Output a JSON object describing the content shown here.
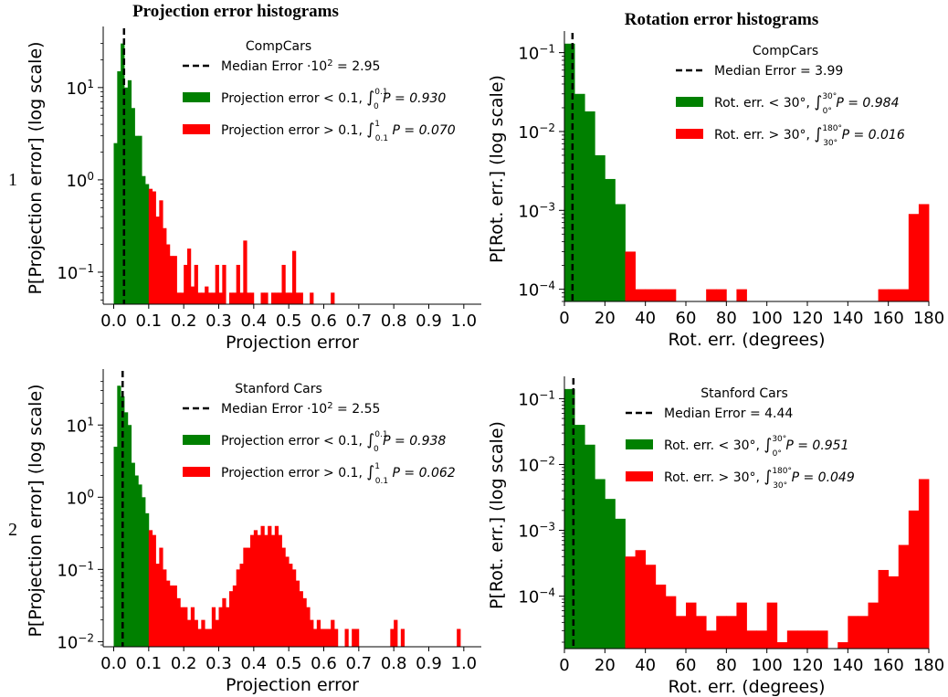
{
  "figure": {
    "column_titles": [
      "Projection error histograms",
      "Rotation error histograms"
    ],
    "row_labels": [
      "1",
      "2"
    ]
  },
  "colors": {
    "below": "#008000",
    "above": "#ff0000",
    "median": "#000000"
  },
  "chart_data": [
    {
      "type": "bar",
      "panel": "1-left",
      "title": "CompCars",
      "xlabel": "Projection error",
      "ylabel": "P[Projection error] (log scale)",
      "yscale": "log",
      "xlim": [
        -0.03,
        1.05
      ],
      "ylim": [
        0.045,
        40
      ],
      "xticks": [
        0.0,
        0.1,
        0.2,
        0.3,
        0.4,
        0.5,
        0.6,
        0.7,
        0.8,
        0.9,
        1.0
      ],
      "xtick_labels": [
        "0.0",
        "0.1",
        "0.2",
        "0.3",
        "0.4",
        "0.5",
        "0.6",
        "0.7",
        "0.8",
        "0.9",
        "1.0"
      ],
      "yticks": [
        0.1,
        1,
        10
      ],
      "ytick_labels": [
        "10⁻¹",
        "10⁰",
        "10¹"
      ],
      "bin_width": 0.01,
      "median": 0.0295,
      "split": 0.1,
      "bins": [
        [
          0.0,
          2.5
        ],
        [
          0.01,
          15
        ],
        [
          0.02,
          30
        ],
        [
          0.03,
          10
        ],
        [
          0.04,
          12
        ],
        [
          0.05,
          6
        ],
        [
          0.06,
          3
        ],
        [
          0.07,
          3
        ],
        [
          0.08,
          1.1
        ],
        [
          0.09,
          0.9
        ],
        [
          0.1,
          0.8
        ],
        [
          0.11,
          0.75
        ],
        [
          0.12,
          0.4
        ],
        [
          0.13,
          0.6
        ],
        [
          0.14,
          0.3
        ],
        [
          0.15,
          0.2
        ],
        [
          0.16,
          0.15
        ],
        [
          0.17,
          0.15
        ],
        [
          0.18,
          0.06
        ],
        [
          0.19,
          0.06
        ],
        [
          0.2,
          0.12
        ],
        [
          0.21,
          0.18
        ],
        [
          0.22,
          0.07
        ],
        [
          0.23,
          0.12
        ],
        [
          0.24,
          0.06
        ],
        [
          0.25,
          0.06
        ],
        [
          0.26,
          0.07
        ],
        [
          0.27,
          0.06
        ],
        [
          0.28,
          0.06
        ],
        [
          0.29,
          0.12
        ],
        [
          0.3,
          0.06
        ],
        [
          0.31,
          0.12
        ],
        [
          0.33,
          0.06
        ],
        [
          0.34,
          0.06
        ],
        [
          0.35,
          0.12
        ],
        [
          0.36,
          0.06
        ],
        [
          0.37,
          0.22
        ],
        [
          0.38,
          0.06
        ],
        [
          0.39,
          0.06
        ],
        [
          0.42,
          0.06
        ],
        [
          0.43,
          0.06
        ],
        [
          0.45,
          0.06
        ],
        [
          0.46,
          0.06
        ],
        [
          0.47,
          0.06
        ],
        [
          0.48,
          0.12
        ],
        [
          0.49,
          0.06
        ],
        [
          0.5,
          0.06
        ],
        [
          0.51,
          0.17
        ],
        [
          0.52,
          0.06
        ],
        [
          0.53,
          0.06
        ],
        [
          0.56,
          0.06
        ],
        [
          0.62,
          0.06
        ]
      ],
      "legend": [
        {
          "kind": "line",
          "text": "Median Error ·10² = 2.95"
        },
        {
          "kind": "bar",
          "color": "below",
          "text": "Projection error < 0.1, ∫₀^0.1 P = 0.930"
        },
        {
          "kind": "bar",
          "color": "above",
          "text": "Projection error > 0.1, ∫_0.1^1 P = 0.070"
        }
      ]
    },
    {
      "type": "bar",
      "panel": "1-right",
      "title": "CompCars",
      "xlabel": "Rot. err. (degrees)",
      "ylabel": "P[Rot. err.] (log scale)",
      "yscale": "log",
      "xlim": [
        0,
        180
      ],
      "ylim": [
        7e-05,
        0.16
      ],
      "xticks": [
        0,
        20,
        40,
        60,
        80,
        100,
        120,
        140,
        160,
        180
      ],
      "xtick_labels": [
        "0",
        "20",
        "40",
        "60",
        "80",
        "100",
        "120",
        "140",
        "160",
        "180"
      ],
      "yticks": [
        0.0001,
        0.001,
        0.01,
        0.1
      ],
      "ytick_labels": [
        "10⁻⁴",
        "10⁻³",
        "10⁻²",
        "10⁻¹"
      ],
      "bin_width": 5,
      "median": 3.99,
      "split": 30,
      "bins": [
        [
          0,
          0.13
        ],
        [
          5,
          0.03
        ],
        [
          10,
          0.018
        ],
        [
          15,
          0.005
        ],
        [
          20,
          0.0025
        ],
        [
          25,
          0.0012
        ],
        [
          30,
          0.0003
        ],
        [
          35,
          0.0001
        ],
        [
          40,
          0.0001
        ],
        [
          45,
          0.0001
        ],
        [
          50,
          0.0001
        ],
        [
          70,
          0.0001
        ],
        [
          75,
          0.0001
        ],
        [
          85,
          0.0001
        ],
        [
          155,
          0.0001
        ],
        [
          160,
          0.0001
        ],
        [
          165,
          0.0001
        ],
        [
          170,
          0.0009
        ],
        [
          175,
          0.0012
        ]
      ],
      "legend": [
        {
          "kind": "line",
          "text": "Median Error = 3.99"
        },
        {
          "kind": "bar",
          "color": "below",
          "text": "Rot. err. < 30°, ∫_0°^30° P = 0.984"
        },
        {
          "kind": "bar",
          "color": "above",
          "text": "Rot. err. > 30°, ∫_30°^180° P = 0.016"
        }
      ]
    },
    {
      "type": "bar",
      "panel": "2-left",
      "title": "Stanford Cars",
      "xlabel": "Projection error",
      "ylabel": "P[Projection error] (log scale)",
      "yscale": "log",
      "xlim": [
        -0.03,
        1.05
      ],
      "ylim": [
        0.0085,
        50
      ],
      "xticks": [
        0.0,
        0.1,
        0.2,
        0.3,
        0.4,
        0.5,
        0.6,
        0.7,
        0.8,
        0.9,
        1.0
      ],
      "xtick_labels": [
        "0.0",
        "0.1",
        "0.2",
        "0.3",
        "0.4",
        "0.5",
        "0.6",
        "0.7",
        "0.8",
        "0.9",
        "1.0"
      ],
      "yticks": [
        0.01,
        0.1,
        1,
        10
      ],
      "ytick_labels": [
        "10⁻²",
        "10⁻¹",
        "10⁰",
        "10¹"
      ],
      "bin_width": 0.01,
      "median": 0.0255,
      "split": 0.1,
      "bins": [
        [
          0.0,
          5
        ],
        [
          0.01,
          35
        ],
        [
          0.02,
          25
        ],
        [
          0.03,
          15
        ],
        [
          0.04,
          10
        ],
        [
          0.05,
          3
        ],
        [
          0.06,
          2
        ],
        [
          0.07,
          1.5
        ],
        [
          0.08,
          1
        ],
        [
          0.09,
          0.6
        ],
        [
          0.1,
          0.35
        ],
        [
          0.11,
          0.3
        ],
        [
          0.12,
          0.12
        ],
        [
          0.13,
          0.2
        ],
        [
          0.14,
          0.1
        ],
        [
          0.15,
          0.07
        ],
        [
          0.16,
          0.06
        ],
        [
          0.17,
          0.06
        ],
        [
          0.18,
          0.04
        ],
        [
          0.19,
          0.03
        ],
        [
          0.2,
          0.03
        ],
        [
          0.21,
          0.02
        ],
        [
          0.22,
          0.03
        ],
        [
          0.23,
          0.02
        ],
        [
          0.24,
          0.015
        ],
        [
          0.25,
          0.02
        ],
        [
          0.26,
          0.015
        ],
        [
          0.27,
          0.015
        ],
        [
          0.28,
          0.03
        ],
        [
          0.29,
          0.02
        ],
        [
          0.3,
          0.03
        ],
        [
          0.31,
          0.04
        ],
        [
          0.32,
          0.03
        ],
        [
          0.33,
          0.05
        ],
        [
          0.34,
          0.06
        ],
        [
          0.35,
          0.1
        ],
        [
          0.36,
          0.12
        ],
        [
          0.37,
          0.2
        ],
        [
          0.38,
          0.2
        ],
        [
          0.39,
          0.3
        ],
        [
          0.4,
          0.35
        ],
        [
          0.41,
          0.3
        ],
        [
          0.42,
          0.4
        ],
        [
          0.43,
          0.3
        ],
        [
          0.44,
          0.4
        ],
        [
          0.45,
          0.3
        ],
        [
          0.46,
          0.4
        ],
        [
          0.47,
          0.3
        ],
        [
          0.48,
          0.2
        ],
        [
          0.49,
          0.15
        ],
        [
          0.5,
          0.12
        ],
        [
          0.51,
          0.1
        ],
        [
          0.52,
          0.07
        ],
        [
          0.53,
          0.05
        ],
        [
          0.54,
          0.04
        ],
        [
          0.55,
          0.03
        ],
        [
          0.56,
          0.02
        ],
        [
          0.57,
          0.015
        ],
        [
          0.58,
          0.02
        ],
        [
          0.59,
          0.015
        ],
        [
          0.6,
          0.015
        ],
        [
          0.61,
          0.015
        ],
        [
          0.62,
          0.02
        ],
        [
          0.63,
          0.015
        ],
        [
          0.66,
          0.015
        ],
        [
          0.68,
          0.015
        ],
        [
          0.69,
          0.015
        ],
        [
          0.79,
          0.015
        ],
        [
          0.8,
          0.02
        ],
        [
          0.82,
          0.015
        ],
        [
          0.98,
          0.015
        ]
      ],
      "legend": [
        {
          "kind": "line",
          "text": "Median Error ·10² = 2.55"
        },
        {
          "kind": "bar",
          "color": "below",
          "text": "Projection error < 0.1, ∫₀^0.1 P = 0.938"
        },
        {
          "kind": "bar",
          "color": "above",
          "text": "Projection error > 0.1, ∫_0.1^1 P = 0.062"
        }
      ]
    },
    {
      "type": "bar",
      "panel": "2-right",
      "title": "Stanford Cars",
      "xlabel": "Rot. err. (degrees)",
      "ylabel": "P[Rot. err.] (log scale)",
      "yscale": "log",
      "xlim": [
        0,
        180
      ],
      "ylim": [
        1.6e-05,
        0.18
      ],
      "xticks": [
        0,
        20,
        40,
        60,
        80,
        100,
        120,
        140,
        160,
        180
      ],
      "xtick_labels": [
        "0",
        "20",
        "40",
        "60",
        "80",
        "100",
        "120",
        "140",
        "160",
        "180"
      ],
      "yticks": [
        0.0001,
        0.001,
        0.01,
        0.1
      ],
      "ytick_labels": [
        "10⁻⁴",
        "10⁻³",
        "10⁻²",
        "10⁻¹"
      ],
      "bin_width": 5,
      "median": 4.44,
      "split": 30,
      "bins": [
        [
          0,
          0.14
        ],
        [
          5,
          0.04
        ],
        [
          10,
          0.02
        ],
        [
          15,
          0.006
        ],
        [
          20,
          0.003
        ],
        [
          25,
          0.0015
        ],
        [
          30,
          0.0004
        ],
        [
          35,
          0.0005
        ],
        [
          40,
          0.0003
        ],
        [
          45,
          0.00015
        ],
        [
          50,
          0.0001
        ],
        [
          55,
          5e-05
        ],
        [
          60,
          8e-05
        ],
        [
          65,
          5e-05
        ],
        [
          70,
          3e-05
        ],
        [
          75,
          5e-05
        ],
        [
          80,
          5e-05
        ],
        [
          85,
          8e-05
        ],
        [
          90,
          3e-05
        ],
        [
          95,
          3e-05
        ],
        [
          100,
          8e-05
        ],
        [
          105,
          2e-05
        ],
        [
          110,
          3e-05
        ],
        [
          115,
          3e-05
        ],
        [
          120,
          3e-05
        ],
        [
          125,
          3e-05
        ],
        [
          135,
          2e-05
        ],
        [
          140,
          5e-05
        ],
        [
          145,
          5e-05
        ],
        [
          150,
          8e-05
        ],
        [
          155,
          0.00025
        ],
        [
          160,
          0.0002
        ],
        [
          165,
          0.0006
        ],
        [
          170,
          0.002
        ],
        [
          175,
          0.006
        ]
      ],
      "legend": [
        {
          "kind": "line",
          "text": "Median Error = 4.44"
        },
        {
          "kind": "bar",
          "color": "below",
          "text": "Rot. err. < 30°, ∫_0°^30° P = 0.951"
        },
        {
          "kind": "bar",
          "color": "above",
          "text": "Rot. err. > 30°, ∫_30°^180° P = 0.049"
        }
      ]
    }
  ]
}
